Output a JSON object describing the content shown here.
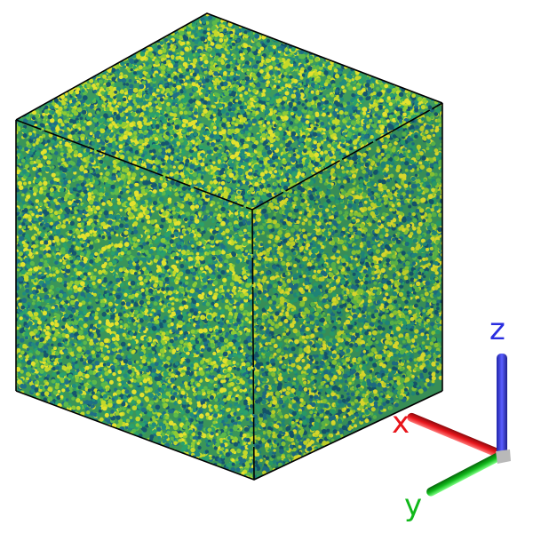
{
  "scene": {
    "particle_colors": [
      "#1f6f86",
      "#218b7e",
      "#2aa16b",
      "#5cb94a",
      "#8ecb35",
      "#c6d92a",
      "#e4e22e",
      "#15566e"
    ],
    "box_edge_color": "#000000",
    "background": "#ffffff"
  },
  "axes": {
    "x": {
      "label": "x",
      "color": "#e8151b"
    },
    "y": {
      "label": "y",
      "color": "#10b81a"
    },
    "z": {
      "label": "z",
      "color": "#2a2ee0"
    }
  }
}
